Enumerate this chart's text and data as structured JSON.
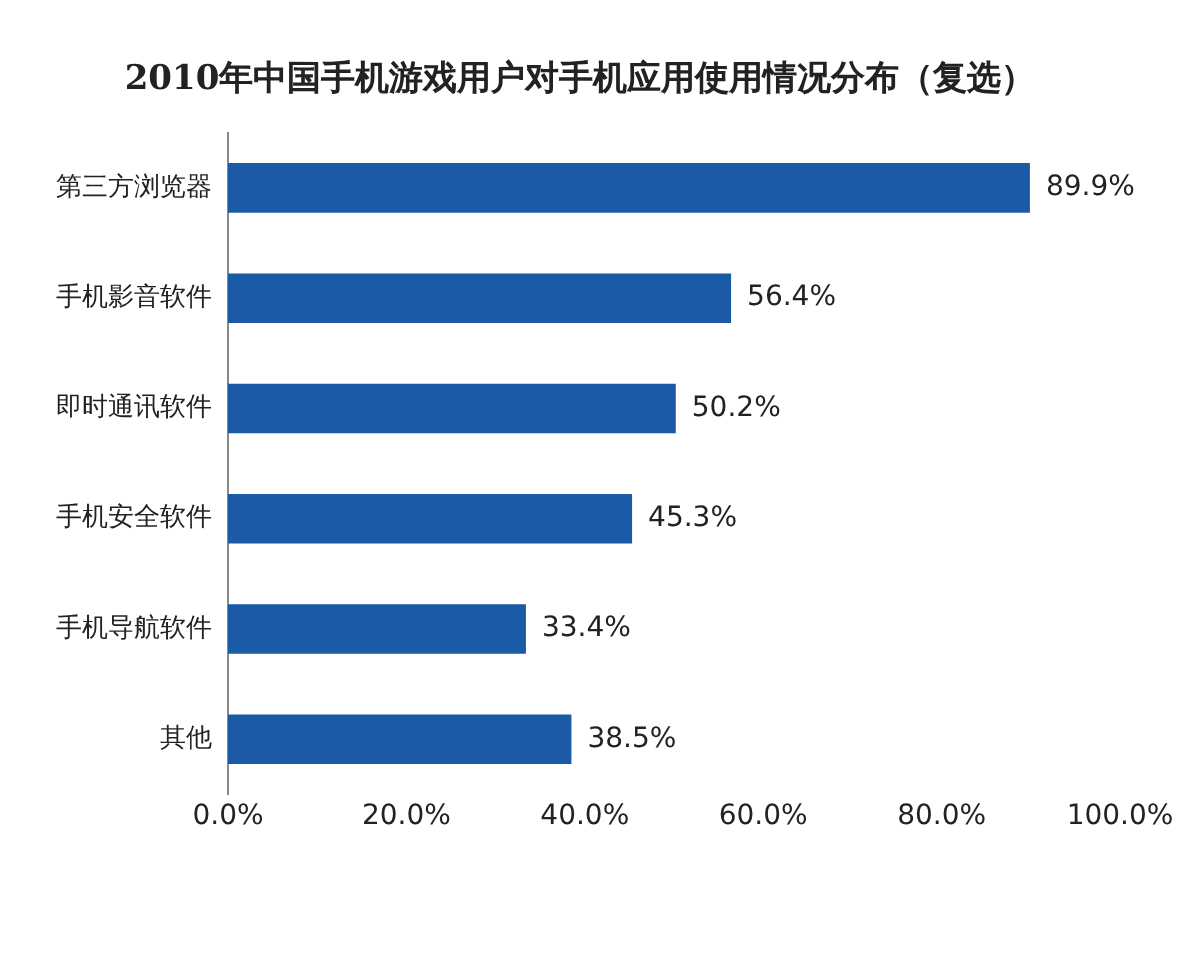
{
  "chart_data": {
    "type": "bar",
    "orientation": "horizontal",
    "title": "2010年中国手机游戏用户对手机应用使用情况分布（复选）",
    "categories": [
      "第三方浏览器",
      "手机影音软件",
      "即时通讯软件",
      "手机安全软件",
      "手机导航软件",
      "其他"
    ],
    "values": [
      89.9,
      56.4,
      50.2,
      45.3,
      33.4,
      38.5
    ],
    "value_labels": [
      "89.9%",
      "56.4%",
      "50.2%",
      "45.3%",
      "33.4%",
      "38.5%"
    ],
    "color": "#1b5aa6",
    "xlim": [
      0,
      100
    ],
    "xticks": [
      {
        "value": 0,
        "label": "0.0%"
      },
      {
        "value": 20,
        "label": "20.0%"
      },
      {
        "value": 40,
        "label": "40.0%"
      },
      {
        "value": 60,
        "label": "60.0%"
      },
      {
        "value": 80,
        "label": "80.0%"
      },
      {
        "value": 100,
        "label": "100.0%"
      }
    ],
    "grid": false,
    "legend": false
  }
}
